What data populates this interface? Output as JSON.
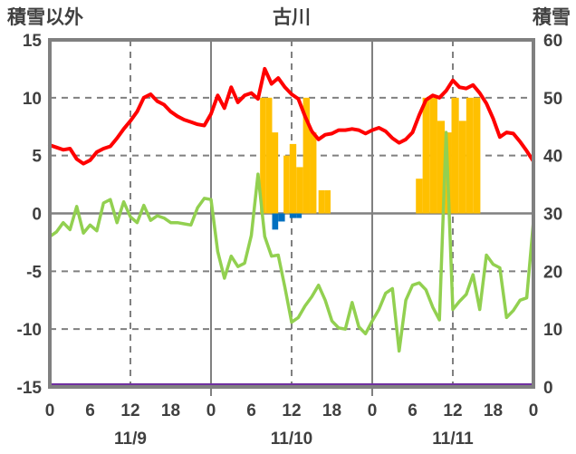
{
  "page": {
    "background": "#FFFFFF"
  },
  "chart_data": {
    "type": "line+bar",
    "title": "古川",
    "left_axis": {
      "title": "積雪以外",
      "min": -15,
      "max": 15,
      "ticks": [
        15,
        10,
        5,
        0,
        -5,
        -10,
        -15
      ],
      "dashed_gridlines": [
        10,
        5,
        -5,
        -10
      ],
      "zero_line": 0
    },
    "right_axis": {
      "title": "積雪",
      "min": 0,
      "max": 60,
      "ticks": [
        60,
        50,
        40,
        30,
        20,
        10,
        0
      ]
    },
    "x_axis": {
      "total_hours": 72,
      "tick_interval_hours": 6,
      "tick_labels": [
        "0",
        "6",
        "12",
        "18",
        "0",
        "6",
        "12",
        "18",
        "0",
        "6",
        "12",
        "18",
        "0"
      ],
      "day_boundary_hours": [
        24,
        48
      ],
      "noon_gridline_hours": [
        12,
        36,
        60
      ],
      "date_labels": [
        {
          "text": "11/9",
          "hour": 12
        },
        {
          "text": "11/10",
          "hour": 36
        },
        {
          "text": "11/11",
          "hour": 60
        }
      ]
    },
    "series": {
      "orange_bars": {
        "color": "#FFC000",
        "axis": "left",
        "bars": [
          {
            "start": 31.3,
            "end": 32.2,
            "value": 10
          },
          {
            "start": 32.2,
            "end": 33.1,
            "value": 10
          },
          {
            "start": 33.1,
            "end": 34.0,
            "value": 7
          },
          {
            "start": 34.8,
            "end": 35.7,
            "value": 5
          },
          {
            "start": 35.7,
            "end": 36.7,
            "value": 6
          },
          {
            "start": 36.7,
            "end": 37.7,
            "value": 4
          },
          {
            "start": 37.7,
            "end": 38.7,
            "value": 10
          },
          {
            "start": 38.7,
            "end": 39.7,
            "value": 7
          },
          {
            "start": 40.0,
            "end": 40.9,
            "value": 2
          },
          {
            "start": 40.9,
            "end": 41.8,
            "value": 2
          },
          {
            "start": 54.5,
            "end": 55.5,
            "value": 3
          },
          {
            "start": 55.5,
            "end": 56.6,
            "value": 10
          },
          {
            "start": 56.6,
            "end": 57.7,
            "value": 10
          },
          {
            "start": 57.7,
            "end": 58.8,
            "value": 8
          },
          {
            "start": 58.8,
            "end": 59.8,
            "value": 7
          },
          {
            "start": 59.8,
            "end": 60.9,
            "value": 10
          },
          {
            "start": 60.9,
            "end": 62.0,
            "value": 8
          },
          {
            "start": 62.0,
            "end": 63.0,
            "value": 10
          },
          {
            "start": 63.0,
            "end": 64.1,
            "value": 10
          }
        ]
      },
      "blue_bars": {
        "color": "#0070C0",
        "axis": "left",
        "bars": [
          {
            "start": 33.1,
            "end": 34.0,
            "value": -1.4
          },
          {
            "start": 34.0,
            "end": 35.0,
            "value": -0.7
          },
          {
            "start": 35.7,
            "end": 36.7,
            "value": -0.4
          },
          {
            "start": 36.7,
            "end": 37.5,
            "value": -0.4
          }
        ]
      },
      "purple_line": {
        "color": "#7030A0",
        "axis": "right",
        "width": 3,
        "x": [
          0,
          72
        ],
        "values": [
          0,
          0
        ]
      },
      "green_line": {
        "color": "#92D050",
        "axis": "left",
        "width": 3.5,
        "x_start": 0,
        "x_step": 1,
        "values": [
          -2.0,
          -1.6,
          -0.8,
          -1.4,
          0.6,
          -1.7,
          -1.0,
          -1.5,
          0.9,
          1.2,
          -0.8,
          1.0,
          -0.3,
          -0.8,
          0.7,
          -0.6,
          -0.2,
          -0.4,
          -0.8,
          -0.8,
          -0.9,
          -1.0,
          0.5,
          1.3,
          1.2,
          -3.3,
          -5.6,
          -3.7,
          -4.6,
          -4.3,
          -1.9,
          3.4,
          -2.0,
          -3.7,
          -3.6,
          -6.4,
          -9.4,
          -9.0,
          -8.0,
          -7.2,
          -6.2,
          -7.5,
          -9.3,
          -9.9,
          -10.0,
          -7.7,
          -9.8,
          -10.4,
          -9.3,
          -8.3,
          -6.9,
          -6.5,
          -11.9,
          -7.5,
          -6.2,
          -6.0,
          -6.6,
          -8.1,
          -9.2,
          7.0,
          -8.3,
          -7.6,
          -7.0,
          -5.3,
          -8.3,
          -3.6,
          -4.4,
          -4.7,
          -9.0,
          -8.4,
          -7.5,
          -7.3,
          -0.7
        ]
      },
      "red_line": {
        "color": "#FF0000",
        "axis": "left",
        "width": 4,
        "x_start": 0,
        "x_step": 1,
        "values": [
          5.9,
          5.7,
          5.5,
          5.6,
          4.7,
          4.3,
          4.6,
          5.3,
          5.6,
          5.8,
          6.5,
          7.3,
          8.0,
          8.8,
          10.0,
          10.3,
          9.7,
          9.4,
          8.8,
          8.4,
          8.1,
          7.9,
          7.7,
          7.6,
          8.6,
          10.2,
          9.1,
          10.9,
          9.6,
          10.2,
          10.4,
          9.9,
          12.5,
          11.2,
          11.7,
          10.9,
          10.3,
          9.9,
          8.4,
          7.1,
          6.4,
          6.8,
          6.9,
          7.2,
          7.2,
          7.3,
          7.2,
          6.9,
          7.2,
          7.4,
          7.1,
          6.5,
          6.1,
          6.4,
          7.0,
          8.5,
          9.8,
          10.2,
          10.0,
          10.6,
          11.5,
          10.9,
          10.8,
          11.1,
          10.4,
          9.5,
          8.2,
          6.6,
          7.0,
          6.9,
          6.2,
          5.4,
          4.5
        ]
      }
    },
    "colors": {
      "grid": "#808080",
      "border": "#808080",
      "text": "#404040",
      "background": "#FFFFFF"
    },
    "legend_position": "none",
    "grid": true
  }
}
